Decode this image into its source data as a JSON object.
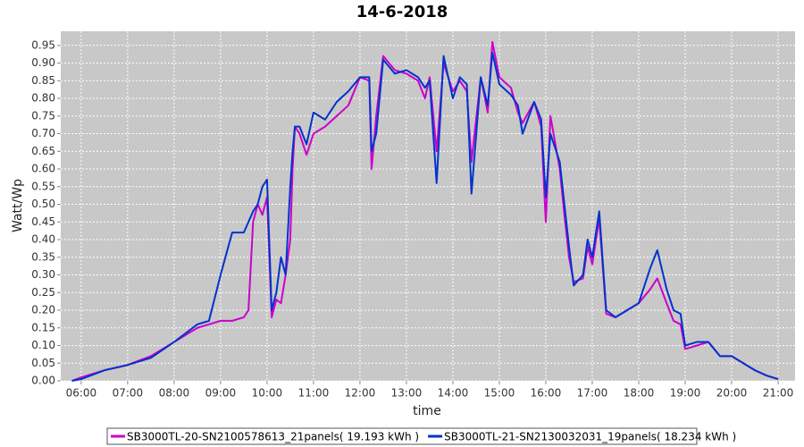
{
  "chart_data": {
    "type": "line",
    "title": "14-6-2018",
    "x_label": "time",
    "y_label": "Watt/Wp",
    "xlim": [
      5.56,
      21.365
    ],
    "ylim": [
      0,
      0.99
    ],
    "grid": true,
    "legend": "bottom",
    "xticks": [
      {
        "value": 6,
        "label": "06:00"
      },
      {
        "value": 7,
        "label": "07:00"
      },
      {
        "value": 8,
        "label": "08:00"
      },
      {
        "value": 9,
        "label": "09:00"
      },
      {
        "value": 10,
        "label": "10:00"
      },
      {
        "value": 11,
        "label": "11:00"
      },
      {
        "value": 12,
        "label": "12:00"
      },
      {
        "value": 13,
        "label": "13:00"
      },
      {
        "value": 14,
        "label": "14:00"
      },
      {
        "value": 15,
        "label": "15:00"
      },
      {
        "value": 16,
        "label": "16:00"
      },
      {
        "value": 17,
        "label": "17:00"
      },
      {
        "value": 18,
        "label": "18:00"
      },
      {
        "value": 19,
        "label": "19:00"
      },
      {
        "value": 20,
        "label": "20:00"
      },
      {
        "value": 21,
        "label": "21:00"
      }
    ],
    "yticks": [
      {
        "value": 0,
        "label": "0.00"
      },
      {
        "value": 0.05,
        "label": "0.05"
      },
      {
        "value": 0.1,
        "label": "0.10"
      },
      {
        "value": 0.15,
        "label": "0.15"
      },
      {
        "value": 0.2,
        "label": "0.20"
      },
      {
        "value": 0.25,
        "label": "0.25"
      },
      {
        "value": 0.3,
        "label": "0.30"
      },
      {
        "value": 0.35,
        "label": "0.35"
      },
      {
        "value": 0.4,
        "label": "0.40"
      },
      {
        "value": 0.45,
        "label": "0.45"
      },
      {
        "value": 0.5,
        "label": "0.50"
      },
      {
        "value": 0.55,
        "label": "0.55"
      },
      {
        "value": 0.6,
        "label": "0.60"
      },
      {
        "value": 0.65,
        "label": "0.65"
      },
      {
        "value": 0.7,
        "label": "0.70"
      },
      {
        "value": 0.75,
        "label": "0.75"
      },
      {
        "value": 0.8,
        "label": "0.80"
      },
      {
        "value": 0.85,
        "label": "0.85"
      },
      {
        "value": 0.9,
        "label": "0.90"
      },
      {
        "value": 0.95,
        "label": "0.95"
      }
    ],
    "x": [
      5.8,
      6.0,
      6.5,
      7.0,
      7.5,
      8.0,
      8.5,
      8.75,
      9.0,
      9.25,
      9.5,
      9.6,
      9.7,
      9.8,
      9.9,
      10.0,
      10.1,
      10.2,
      10.3,
      10.4,
      10.5,
      10.55,
      10.6,
      10.7,
      10.85,
      11.0,
      11.25,
      11.5,
      11.75,
      12.0,
      12.2,
      12.25,
      12.35,
      12.5,
      12.75,
      13.0,
      13.25,
      13.4,
      13.5,
      13.65,
      13.8,
      14.0,
      14.15,
      14.3,
      14.4,
      14.6,
      14.75,
      14.85,
      15.0,
      15.25,
      15.4,
      15.5,
      15.75,
      15.9,
      16.0,
      16.1,
      16.3,
      16.4,
      16.5,
      16.6,
      16.8,
      16.9,
      17.0,
      17.15,
      17.3,
      17.5,
      17.75,
      18.0,
      18.25,
      18.4,
      18.6,
      18.75,
      18.9,
      19.0,
      19.25,
      19.5,
      19.75,
      20.0,
      20.25,
      20.5,
      20.75,
      21.0
    ],
    "series": [
      {
        "name": "SB3000TL-20-SN2100578613_21panels( 19.193 kWh )",
        "color": "#cc00cc",
        "values": [
          0,
          0.01,
          0.03,
          0.045,
          0.07,
          0.11,
          0.15,
          0.16,
          0.17,
          0.17,
          0.18,
          0.2,
          0.45,
          0.5,
          0.47,
          0.52,
          0.18,
          0.23,
          0.22,
          0.3,
          0.4,
          0.6,
          0.72,
          0.7,
          0.64,
          0.7,
          0.72,
          0.75,
          0.78,
          0.86,
          0.85,
          0.6,
          0.75,
          0.92,
          0.88,
          0.87,
          0.85,
          0.8,
          0.86,
          0.65,
          0.9,
          0.82,
          0.85,
          0.82,
          0.62,
          0.86,
          0.76,
          0.96,
          0.86,
          0.83,
          0.76,
          0.73,
          0.79,
          0.72,
          0.45,
          0.75,
          0.6,
          0.47,
          0.35,
          0.28,
          0.29,
          0.38,
          0.33,
          0.46,
          0.19,
          0.18,
          0.2,
          0.22,
          0.26,
          0.29,
          0.22,
          0.17,
          0.16,
          0.09,
          0.1,
          0.11,
          0.07,
          0.07,
          0.05,
          0.03,
          0.015,
          0.005
        ]
      },
      {
        "name": "SB3000TL-21-SN2130032031_19panels( 18.234 kWh )",
        "color": "#0033cc",
        "values": [
          0,
          0.005,
          0.03,
          0.045,
          0.065,
          0.11,
          0.16,
          0.17,
          0.3,
          0.42,
          0.42,
          0.45,
          0.48,
          0.5,
          0.55,
          0.57,
          0.2,
          0.25,
          0.35,
          0.3,
          0.55,
          0.65,
          0.72,
          0.72,
          0.67,
          0.76,
          0.74,
          0.79,
          0.82,
          0.86,
          0.86,
          0.65,
          0.7,
          0.91,
          0.87,
          0.88,
          0.86,
          0.83,
          0.85,
          0.56,
          0.92,
          0.8,
          0.86,
          0.84,
          0.53,
          0.86,
          0.78,
          0.93,
          0.84,
          0.81,
          0.78,
          0.7,
          0.79,
          0.74,
          0.52,
          0.7,
          0.62,
          0.5,
          0.38,
          0.27,
          0.3,
          0.4,
          0.35,
          0.48,
          0.2,
          0.18,
          0.2,
          0.22,
          0.32,
          0.37,
          0.26,
          0.2,
          0.19,
          0.1,
          0.11,
          0.11,
          0.07,
          0.07,
          0.05,
          0.03,
          0.015,
          0.005
        ]
      }
    ]
  }
}
